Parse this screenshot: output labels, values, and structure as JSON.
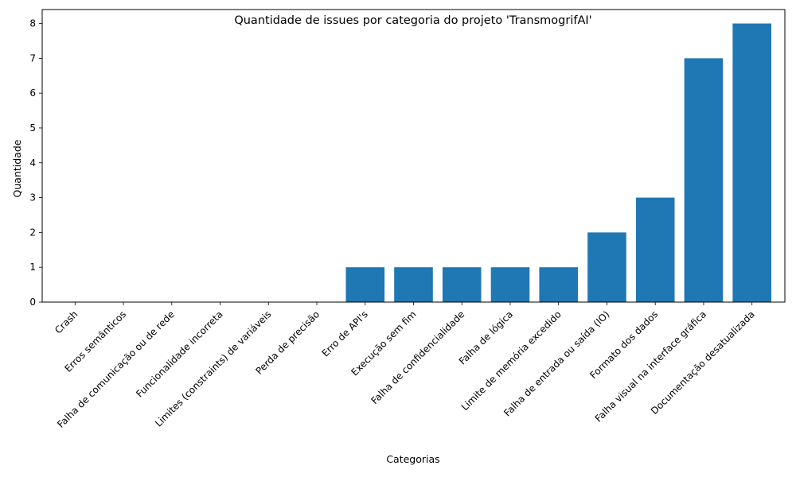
{
  "chart_data": {
    "type": "bar",
    "title": "Quantidade de issues por categoria do projeto 'TransmogrifAI'",
    "xlabel": "Categorias",
    "ylabel": "Quantidade",
    "ylim": [
      0,
      8.4
    ],
    "yticks": [
      0,
      1,
      2,
      3,
      4,
      5,
      6,
      7,
      8
    ],
    "grid": false,
    "bar_color": "#1f77b4",
    "categories": [
      "Crash",
      "Erros semânticos",
      "Falha de comunicação ou de rede",
      "Funcionalidade incorreta",
      "Limites (constraints) de variáveis",
      "Perda de precisão",
      "Erro de API's",
      "Execução sem fim",
      "Falha de confidencialidade",
      "Falha de lógica",
      "Limite de memória excedido",
      "Falha de entrada ou saída (IO)",
      "Formato dos dados",
      "Falha visual na interface gráfica",
      "Documentação desatualizada"
    ],
    "values": [
      0,
      0,
      0,
      0,
      0,
      0,
      1,
      1,
      1,
      1,
      1,
      2,
      3,
      7,
      8
    ]
  }
}
